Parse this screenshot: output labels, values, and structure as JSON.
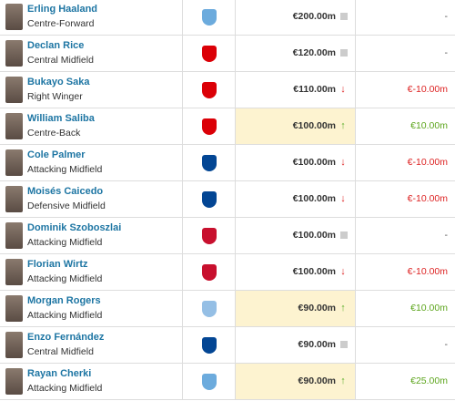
{
  "table": {
    "rows": [
      {
        "name": "Erling Haaland",
        "position": "Centre-Forward",
        "value": "€200.00m",
        "trend": "none",
        "change": "-",
        "crest_color": "#6cabdd"
      },
      {
        "name": "Declan Rice",
        "position": "Central Midfield",
        "value": "€120.00m",
        "trend": "none",
        "change": "-",
        "crest_color": "#db0007"
      },
      {
        "name": "Bukayo Saka",
        "position": "Right Winger",
        "value": "€110.00m",
        "trend": "down",
        "change": "€-10.00m",
        "crest_color": "#db0007"
      },
      {
        "name": "William Saliba",
        "position": "Centre-Back",
        "value": "€100.00m",
        "trend": "up",
        "change": "€10.00m",
        "crest_color": "#db0007"
      },
      {
        "name": "Cole Palmer",
        "position": "Attacking Midfield",
        "value": "€100.00m",
        "trend": "down",
        "change": "€-10.00m",
        "crest_color": "#034694"
      },
      {
        "name": "Moisés Caicedo",
        "position": "Defensive Midfield",
        "value": "€100.00m",
        "trend": "down",
        "change": "€-10.00m",
        "crest_color": "#034694"
      },
      {
        "name": "Dominik Szoboszlai",
        "position": "Attacking Midfield",
        "value": "€100.00m",
        "trend": "none",
        "change": "-",
        "crest_color": "#c8102e"
      },
      {
        "name": "Florian Wirtz",
        "position": "Attacking Midfield",
        "value": "€100.00m",
        "trend": "down",
        "change": "€-10.00m",
        "crest_color": "#c8102e"
      },
      {
        "name": "Morgan Rogers",
        "position": "Attacking Midfield",
        "value": "€90.00m",
        "trend": "up",
        "change": "€10.00m",
        "crest_color": "#95bfe5"
      },
      {
        "name": "Enzo Fernández",
        "position": "Central Midfield",
        "value": "€90.00m",
        "trend": "none",
        "change": "-",
        "crest_color": "#034694"
      },
      {
        "name": "Rayan Cherki",
        "position": "Attacking Midfield",
        "value": "€90.00m",
        "trend": "up",
        "change": "€25.00m",
        "crest_color": "#6cabdd"
      }
    ]
  }
}
